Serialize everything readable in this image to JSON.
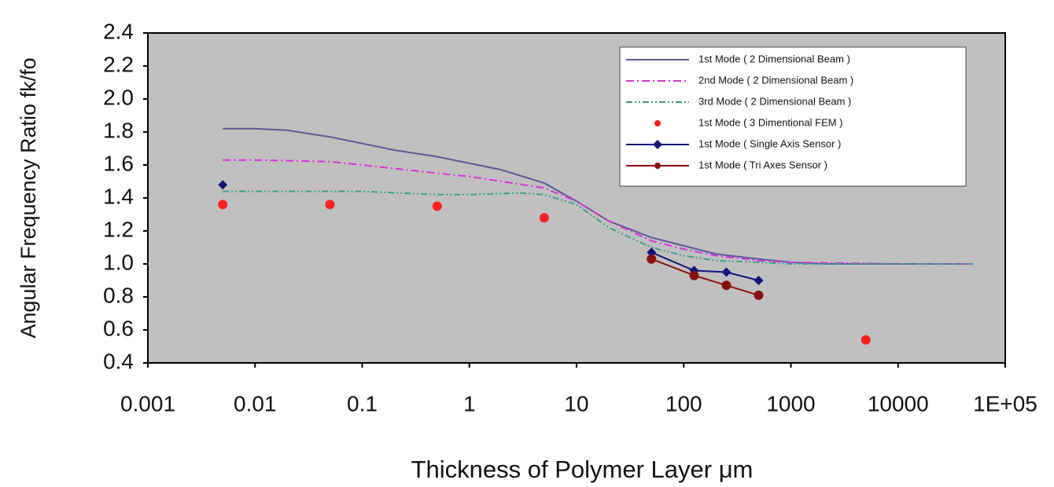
{
  "chart_data": {
    "type": "line",
    "xlabel": "Thickness of Polymer Layer μm",
    "ylabel": "Angular Frequency Ratio fk/fo",
    "xscale": "log",
    "xlim": [
      0.001,
      100000
    ],
    "xticks": [
      0.001,
      0.01,
      0.1,
      1,
      10,
      100,
      1000,
      10000,
      {
        "value": 100000,
        "label": "1E+05"
      }
    ],
    "ylim": [
      0.4,
      2.4
    ],
    "yticks": [
      0.4,
      0.6,
      0.8,
      {
        "value": 1.0,
        "label": "1.0"
      },
      1.2,
      1.4,
      1.6,
      1.8,
      {
        "value": 2.0,
        "label": "2.0"
      },
      2.2,
      2.4
    ],
    "legend": "upper right",
    "series": [
      {
        "name": "1st Mode ( 2 Dimensional Beam )",
        "color": "#5a5a98",
        "dash": "solid",
        "marker": null,
        "line": true,
        "x": [
          0.005,
          0.01,
          0.02,
          0.05,
          0.1,
          0.2,
          0.5,
          1,
          2,
          5,
          10,
          20,
          50,
          100,
          200,
          500,
          1000,
          2000,
          5000,
          10000,
          50000
        ],
        "values": [
          1.82,
          1.82,
          1.81,
          1.77,
          1.73,
          1.69,
          1.65,
          1.61,
          1.57,
          1.49,
          1.38,
          1.26,
          1.16,
          1.11,
          1.06,
          1.03,
          1.01,
          1.0,
          1.0,
          1.0,
          1.0
        ]
      },
      {
        "name": "2nd Mode ( 2 Dimensional Beam )",
        "color": "#d633d6",
        "dash": "dashdot",
        "marker": null,
        "line": true,
        "x": [
          0.005,
          0.01,
          0.05,
          0.1,
          0.5,
          1,
          2,
          5,
          10,
          20,
          50,
          100,
          200,
          500,
          1000,
          10000,
          50000
        ],
        "values": [
          1.63,
          1.63,
          1.62,
          1.6,
          1.55,
          1.53,
          1.5,
          1.46,
          1.38,
          1.26,
          1.14,
          1.09,
          1.05,
          1.02,
          1.01,
          1.0,
          1.0
        ]
      },
      {
        "name": "3rd Mode ( 2 Dimensional Beam )",
        "color": "#3aa08a",
        "dash": "dashdotdot",
        "marker": null,
        "line": true,
        "x": [
          0.005,
          0.1,
          0.5,
          1,
          3,
          5,
          10,
          20,
          50,
          100,
          200,
          500,
          1000,
          50000
        ],
        "values": [
          1.44,
          1.44,
          1.42,
          1.42,
          1.43,
          1.42,
          1.36,
          1.22,
          1.1,
          1.05,
          1.02,
          1.01,
          1.0,
          1.0
        ]
      },
      {
        "name": "1st Mode ( 3 Dimentional FEM )",
        "color": "#ff2020",
        "dash": null,
        "marker": "circle",
        "line": false,
        "x": [
          0.005,
          0.05,
          0.5,
          5,
          5000
        ],
        "values": [
          1.36,
          1.36,
          1.35,
          1.28,
          0.54
        ]
      },
      {
        "name": "1st Mode ( Single Axis Sensor )",
        "color": "#14147a",
        "dash": "solid",
        "marker": "diamond",
        "line": true,
        "x": [
          0.005,
          null,
          50,
          125,
          250,
          500
        ],
        "values": [
          1.48,
          null,
          1.07,
          0.96,
          0.95,
          0.9
        ]
      },
      {
        "name": "1st Mode ( Tri Axes Sensor )",
        "color": "#8b1010",
        "dash": "solid",
        "marker": "circle",
        "line": true,
        "x": [
          50,
          125,
          250,
          500
        ],
        "values": [
          1.03,
          0.93,
          0.87,
          0.81
        ]
      }
    ]
  }
}
